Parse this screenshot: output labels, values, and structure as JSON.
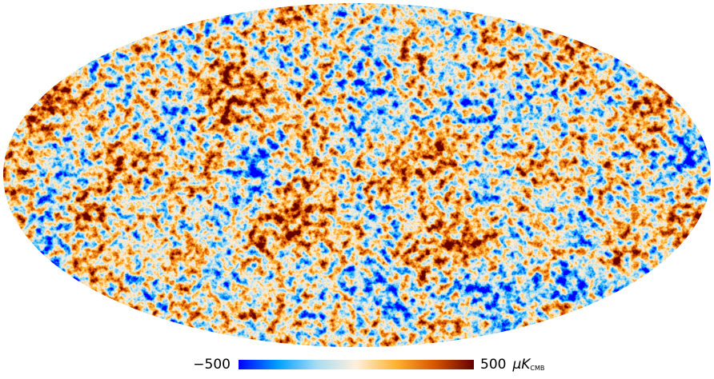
{
  "colorbar": {
    "ticks": [
      {
        "value": -500,
        "label": "−500"
      },
      500
    ],
    "unit": "μK",
    "unit_subscript": "CMB",
    "colormap": [
      "#0000ff",
      "#00a0ff",
      "#a8dcf2",
      "#fff0dc",
      "#ffb432",
      "#d85400",
      "#640000"
    ]
  }
}
